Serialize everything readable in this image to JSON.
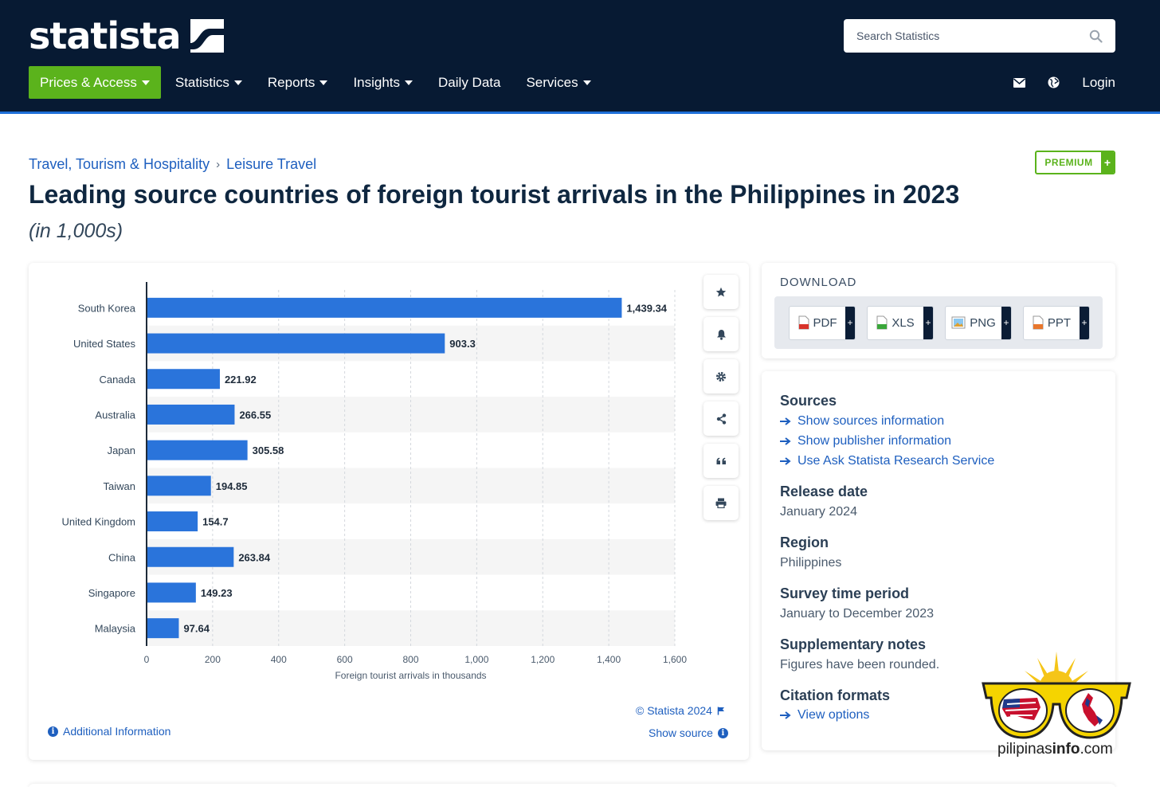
{
  "header": {
    "logo_text": "statista",
    "search_placeholder": "Search Statistics",
    "nav": [
      {
        "label": "Prices & Access",
        "dropdown": true
      },
      {
        "label": "Statistics",
        "dropdown": true
      },
      {
        "label": "Reports",
        "dropdown": true
      },
      {
        "label": "Insights",
        "dropdown": true
      },
      {
        "label": "Daily Data",
        "dropdown": false
      },
      {
        "label": "Services",
        "dropdown": true
      }
    ],
    "right": {
      "mail_icon": "mail-icon",
      "globe_icon": "globe-icon",
      "login": "Login"
    }
  },
  "breadcrumb": {
    "items": [
      "Travel, Tourism & Hospitality",
      "Leisure Travel"
    ],
    "separator": "›"
  },
  "premium_badge": {
    "label": "PREMIUM",
    "plus": "+"
  },
  "page": {
    "title": "Leading source countries of foreign tourist arrivals in the Philippines in 2023",
    "subtitle": "(in 1,000s)"
  },
  "chart_data": {
    "type": "bar",
    "orientation": "horizontal",
    "categories": [
      "South Korea",
      "United States",
      "Canada",
      "Australia",
      "Japan",
      "Taiwan",
      "United Kingdom",
      "China",
      "Singapore",
      "Malaysia"
    ],
    "values": [
      1439.34,
      903.3,
      221.92,
      266.55,
      305.58,
      194.85,
      154.7,
      263.84,
      149.23,
      97.64
    ],
    "value_labels": [
      "1,439.34",
      "903.3",
      "221.92",
      "266.55",
      "305.58",
      "194.85",
      "154.7",
      "263.84",
      "149.23",
      "97.64"
    ],
    "xlabel": "Foreign tourist arrivals in thousands",
    "xlim": [
      0,
      1600
    ],
    "ticks": [
      0,
      200,
      400,
      600,
      800,
      1000,
      1200,
      1400,
      1600
    ],
    "tick_labels": [
      "0",
      "200",
      "400",
      "600",
      "800",
      "1,000",
      "1,200",
      "1,400",
      "1,600"
    ],
    "grid": true,
    "bar_color": "#2a74db"
  },
  "chart_tools": [
    "star-icon",
    "bell-icon",
    "gear-icon",
    "share-icon",
    "quote-icon",
    "print-icon"
  ],
  "chart_footer": {
    "copyright": "© Statista 2024",
    "show_source": "Show source",
    "additional_info": "Additional Information"
  },
  "download": {
    "title": "DOWNLOAD",
    "buttons": [
      {
        "label": "PDF",
        "icon": "pdf-file-icon",
        "color": "#d8332a"
      },
      {
        "label": "XLS",
        "icon": "xls-file-icon",
        "color": "#3aa63a"
      },
      {
        "label": "PNG",
        "icon": "png-file-icon",
        "color": "#2e7bd6"
      },
      {
        "label": "PPT",
        "icon": "ppt-file-icon",
        "color": "#e8762c"
      }
    ],
    "plus": "+"
  },
  "info": {
    "sources_heading": "Sources",
    "source_links": [
      "Show sources information",
      "Show publisher information",
      "Use Ask Statista Research Service"
    ],
    "release_heading": "Release date",
    "release_value": "January 2024",
    "region_heading": "Region",
    "region_value": "Philippines",
    "survey_heading": "Survey time period",
    "survey_value": "January to December 2023",
    "notes_heading": "Supplementary notes",
    "notes_value": "Figures have been rounded.",
    "citation_heading": "Citation formats",
    "citation_link": "View options"
  },
  "watermark": {
    "text_plain": "pilipinas",
    "text_bold": "info",
    "text_suffix": ".com"
  },
  "colors": {
    "header_bg": "#071a33",
    "accent_green": "#5bb31c",
    "link_blue": "#1e5fbf",
    "bar_blue": "#2a74db"
  }
}
